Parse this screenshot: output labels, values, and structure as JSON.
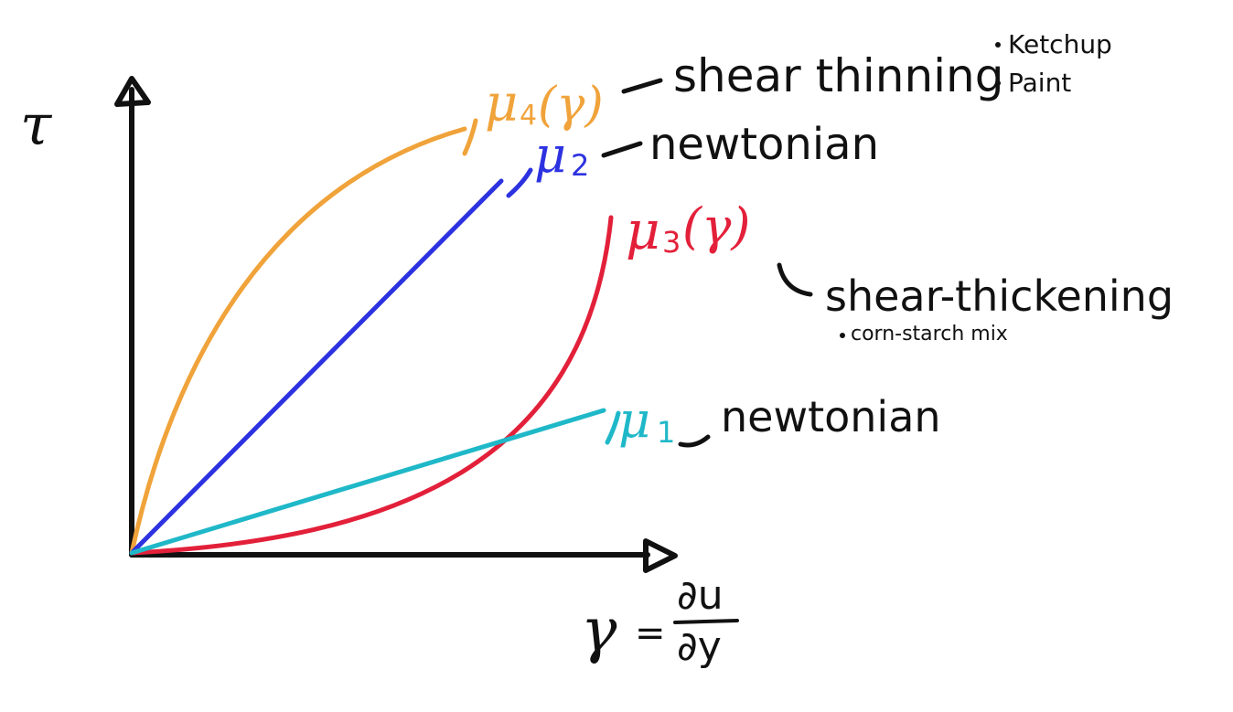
{
  "diagram": {
    "y_axis_symbol": "τ",
    "x_axis_label": {
      "gamma": "γ",
      "equals": "=",
      "numerator": "∂u",
      "denominator": "∂y"
    },
    "curves": [
      {
        "id": "mu4",
        "mu": "μ",
        "subscript": "4",
        "argument": "(γ)",
        "behavior": "shear thinning",
        "examples": [
          "Ketchup",
          "Paint"
        ],
        "color": "#f0a33a"
      },
      {
        "id": "mu2",
        "mu": "μ",
        "subscript": "2",
        "argument": "",
        "behavior": "newtonian",
        "examples": [],
        "color": "#2d32e0"
      },
      {
        "id": "mu3",
        "mu": "μ",
        "subscript": "3",
        "argument": "(γ)",
        "behavior": "shear-thickening",
        "examples": [
          "corn-starch mix"
        ],
        "color": "#e3203a"
      },
      {
        "id": "mu1",
        "mu": "μ",
        "subscript": "1",
        "argument": "",
        "behavior": "newtonian",
        "examples": [],
        "color": "#1fb8c8"
      }
    ],
    "axis_color": "#111111"
  }
}
